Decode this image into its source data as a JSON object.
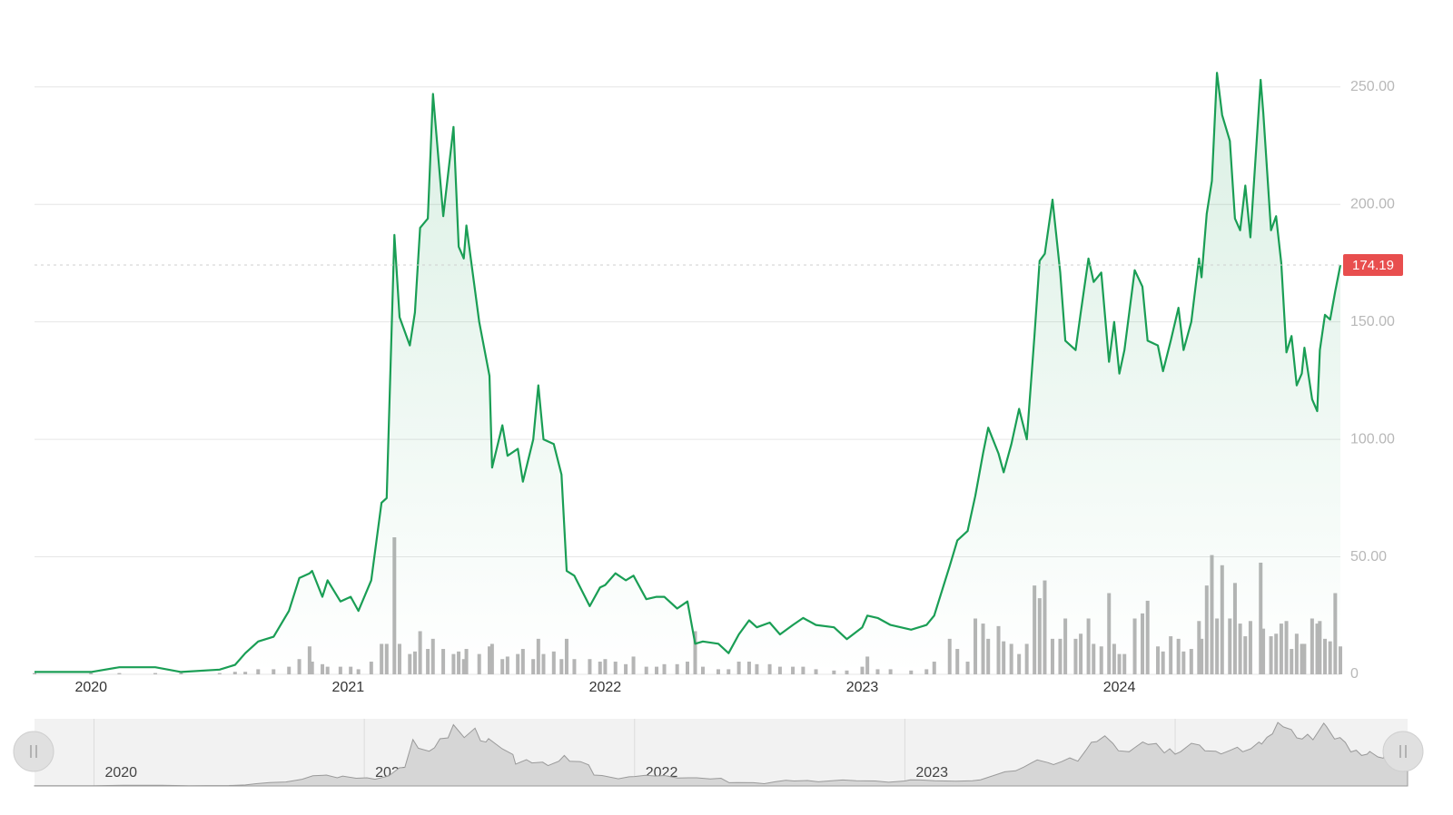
{
  "chart_data": {
    "type": "line",
    "x": [
      2019.78,
      2020.0,
      2020.11,
      2020.25,
      2020.35,
      2020.5,
      2020.56,
      2020.6,
      2020.65,
      2020.71,
      2020.77,
      2020.81,
      2020.85,
      2020.86,
      2020.9,
      2020.92,
      2020.97,
      2021.01,
      2021.04,
      2021.09,
      2021.13,
      2021.15,
      2021.18,
      2021.2,
      2021.24,
      2021.26,
      2021.28,
      2021.31,
      2021.33,
      2021.37,
      2021.41,
      2021.43,
      2021.45,
      2021.46,
      2021.51,
      2021.55,
      2021.56,
      2021.6,
      2021.62,
      2021.66,
      2021.68,
      2021.72,
      2021.74,
      2021.76,
      2021.8,
      2021.83,
      2021.85,
      2021.88,
      2021.94,
      2021.98,
      2022.0,
      2022.04,
      2022.08,
      2022.11,
      2022.16,
      2022.2,
      2022.23,
      2022.28,
      2022.32,
      2022.35,
      2022.38,
      2022.44,
      2022.48,
      2022.52,
      2022.56,
      2022.59,
      2022.64,
      2022.68,
      2022.73,
      2022.77,
      2022.82,
      2022.89,
      2022.94,
      2023.0,
      2023.02,
      2023.06,
      2023.11,
      2023.19,
      2023.25,
      2023.28,
      2023.34,
      2023.37,
      2023.41,
      2023.44,
      2023.47,
      2023.49,
      2023.53,
      2023.55,
      2023.58,
      2023.61,
      2023.64,
      2023.67,
      2023.69,
      2023.71,
      2023.74,
      2023.77,
      2023.79,
      2023.83,
      2023.85,
      2023.88,
      2023.9,
      2023.93,
      2023.96,
      2023.98,
      2024.0,
      2024.02,
      2024.06,
      2024.09,
      2024.11,
      2024.15,
      2024.17,
      2024.2,
      2024.23,
      2024.25,
      2024.28,
      2024.31,
      2024.32,
      2024.34,
      2024.36,
      2024.38,
      2024.4,
      2024.43,
      2024.45,
      2024.47,
      2024.49,
      2024.51,
      2024.55,
      2024.56,
      2024.59,
      2024.61,
      2024.63,
      2024.65,
      2024.67,
      2024.69,
      2024.71,
      2024.72,
      2024.75,
      2024.77,
      2024.78,
      2024.8,
      2024.82,
      2024.84,
      2024.86
    ],
    "series": [
      {
        "color": "#1a9e55",
        "values": [
          1,
          1,
          3,
          3,
          1,
          2,
          4,
          9,
          14,
          16,
          27,
          41,
          43,
          44,
          33,
          40,
          31,
          33,
          27,
          40,
          73,
          75,
          187,
          152,
          140,
          154,
          190,
          194,
          247,
          195,
          233,
          182,
          177,
          191,
          150,
          127,
          88,
          106,
          93,
          96,
          82,
          100,
          123,
          100,
          98,
          85,
          44,
          42,
          29,
          37,
          38,
          43,
          40,
          42,
          32,
          33,
          33,
          28,
          31,
          13,
          14,
          13,
          9,
          17,
          23,
          20,
          22,
          17,
          21,
          24,
          21,
          20,
          15,
          20,
          25,
          24,
          21,
          19,
          21,
          25,
          46,
          57,
          61,
          76,
          94,
          105,
          94,
          86,
          98,
          113,
          100,
          144,
          176,
          179,
          202,
          171,
          142,
          138,
          154,
          177,
          167,
          171,
          133,
          150,
          128,
          138,
          172,
          165,
          142,
          140,
          129,
          142,
          156,
          138,
          150,
          177,
          169,
          196,
          210,
          256,
          238,
          227,
          194,
          189,
          208,
          186,
          253,
          239,
          189,
          195,
          175,
          137,
          144,
          123,
          128,
          139,
          117,
          112,
          138,
          153,
          151,
          163,
          174.19
        ]
      },
      {
        "type": "bar",
        "axis": "y2",
        "color": "#b5b5b5",
        "values": [
          0.5,
          0.5,
          0.5,
          0.5,
          0.5,
          0.5,
          1,
          1,
          2,
          2,
          3,
          6,
          11,
          5,
          4,
          3,
          3,
          3,
          2,
          5,
          12,
          12,
          54,
          12,
          8,
          9,
          17,
          10,
          14,
          10,
          8,
          9,
          6,
          10,
          8,
          11,
          12,
          6,
          7,
          8,
          10,
          6,
          14,
          8,
          9,
          6,
          14,
          6,
          6,
          5,
          6,
          5,
          4,
          7,
          3,
          3,
          4,
          4,
          5,
          17,
          3,
          2,
          2,
          5,
          5,
          4,
          4,
          3,
          3,
          3,
          2,
          1.5,
          1.5,
          3,
          7,
          2,
          2,
          1.5,
          2,
          5,
          14,
          10,
          5,
          22,
          20,
          14,
          19,
          13,
          12,
          8,
          12,
          35,
          30,
          37,
          14,
          14,
          22,
          14,
          16,
          22,
          12,
          11,
          32,
          12,
          8,
          8,
          22,
          24,
          29,
          11,
          9,
          15,
          14,
          9,
          10,
          21,
          14,
          35,
          47,
          22,
          43,
          22,
          36,
          20,
          15,
          21,
          44,
          18,
          15,
          16,
          20,
          21,
          10,
          16,
          12,
          12,
          22,
          20,
          21,
          14,
          13,
          32,
          11
        ]
      }
    ],
    "xlim": [
      2019.78,
      2024.86
    ],
    "xticks": [
      2020,
      2021,
      2022,
      2023,
      2024
    ],
    "ylim": [
      0,
      270
    ],
    "yticks": [
      0,
      {
        "value": 50,
        "label": "50.00"
      },
      {
        "value": 100,
        "label": "100.00"
      },
      {
        "value": 150,
        "label": "150.00"
      },
      {
        "value": 200,
        "label": "200.00"
      },
      {
        "value": 250,
        "label": "250.00"
      }
    ],
    "y2lim": [
      0,
      250
    ],
    "grid": true,
    "last_value": 174.19
  }
}
